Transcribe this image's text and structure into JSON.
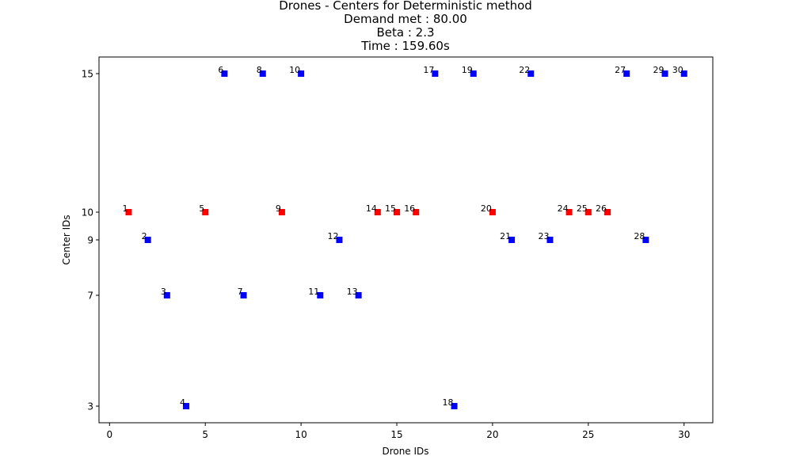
{
  "chart_data": {
    "type": "scatter",
    "title_lines": [
      "Drones - Centers for Deterministic method",
      "Demand met : 80.00",
      "Beta : 2.3",
      "Time : 159.60s"
    ],
    "xlabel": "Drone IDs",
    "ylabel": "Center IDs",
    "xlim": [
      -0.55,
      31.5
    ],
    "ylim": [
      2.4,
      15.6
    ],
    "xticks": [
      0,
      5,
      10,
      15,
      20,
      25,
      30
    ],
    "yticks": [
      3,
      7,
      9,
      10,
      15
    ],
    "grid": false,
    "colors": {
      "red": "#ff0000",
      "blue": "#0000ff"
    },
    "points": [
      {
        "x": 1,
        "y": 10,
        "label": "1",
        "color": "red"
      },
      {
        "x": 2,
        "y": 9,
        "label": "2",
        "color": "blue"
      },
      {
        "x": 3,
        "y": 7,
        "label": "3",
        "color": "blue"
      },
      {
        "x": 4,
        "y": 3,
        "label": "4",
        "color": "blue"
      },
      {
        "x": 5,
        "y": 10,
        "label": "5",
        "color": "red"
      },
      {
        "x": 6,
        "y": 15,
        "label": "6",
        "color": "blue"
      },
      {
        "x": 7,
        "y": 7,
        "label": "7",
        "color": "blue"
      },
      {
        "x": 8,
        "y": 15,
        "label": "8",
        "color": "blue"
      },
      {
        "x": 9,
        "y": 10,
        "label": "9",
        "color": "red"
      },
      {
        "x": 10,
        "y": 15,
        "label": "10",
        "color": "blue"
      },
      {
        "x": 11,
        "y": 7,
        "label": "11",
        "color": "blue"
      },
      {
        "x": 12,
        "y": 9,
        "label": "12",
        "color": "blue"
      },
      {
        "x": 13,
        "y": 7,
        "label": "13",
        "color": "blue"
      },
      {
        "x": 14,
        "y": 10,
        "label": "14",
        "color": "red"
      },
      {
        "x": 15,
        "y": 10,
        "label": "15",
        "color": "red"
      },
      {
        "x": 16,
        "y": 10,
        "label": "16",
        "color": "red"
      },
      {
        "x": 17,
        "y": 15,
        "label": "17",
        "color": "blue"
      },
      {
        "x": 18,
        "y": 3,
        "label": "18",
        "color": "blue"
      },
      {
        "x": 19,
        "y": 15,
        "label": "19",
        "color": "blue"
      },
      {
        "x": 20,
        "y": 10,
        "label": "20",
        "color": "red"
      },
      {
        "x": 21,
        "y": 9,
        "label": "21",
        "color": "blue"
      },
      {
        "x": 22,
        "y": 15,
        "label": "22",
        "color": "blue"
      },
      {
        "x": 23,
        "y": 9,
        "label": "23",
        "color": "blue"
      },
      {
        "x": 24,
        "y": 10,
        "label": "24",
        "color": "red"
      },
      {
        "x": 25,
        "y": 10,
        "label": "25",
        "color": "red"
      },
      {
        "x": 26,
        "y": 10,
        "label": "26",
        "color": "red"
      },
      {
        "x": 27,
        "y": 15,
        "label": "27",
        "color": "blue"
      },
      {
        "x": 28,
        "y": 9,
        "label": "28",
        "color": "blue"
      },
      {
        "x": 29,
        "y": 15,
        "label": "29",
        "color": "blue"
      },
      {
        "x": 30,
        "y": 15,
        "label": "30",
        "color": "blue"
      }
    ]
  }
}
